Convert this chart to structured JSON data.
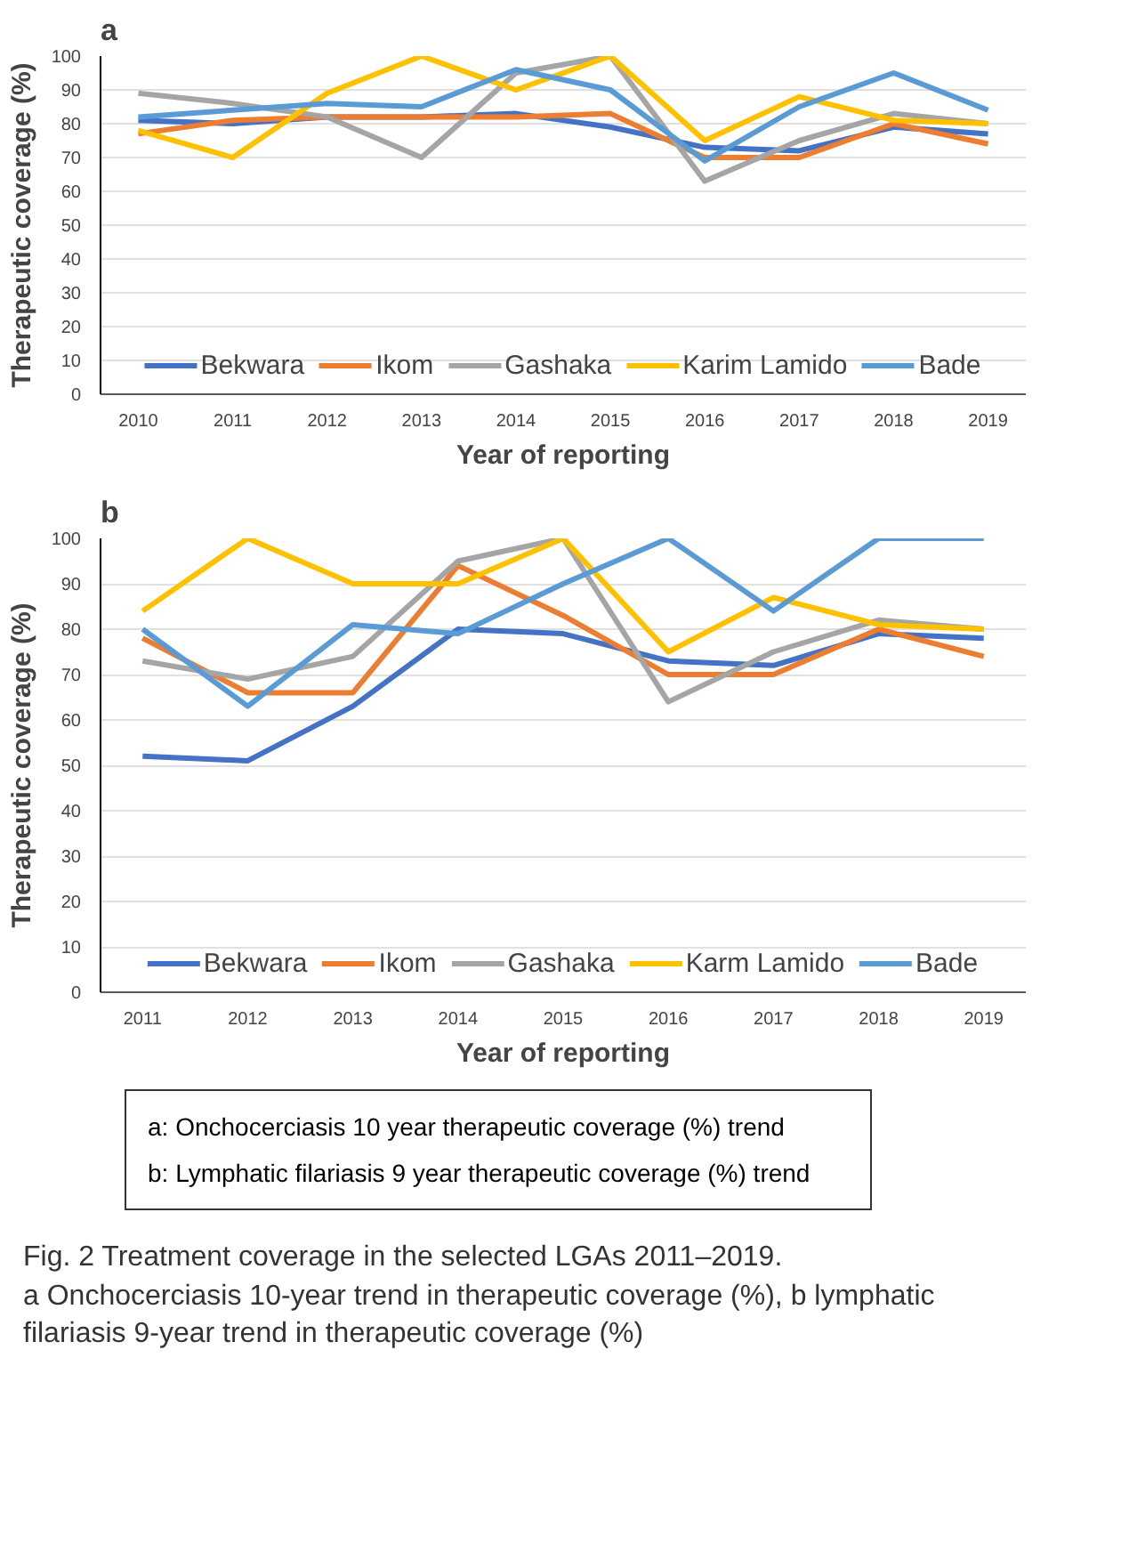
{
  "chart_data": [
    {
      "type": "line",
      "title": "a",
      "xlabel": "Year of reporting",
      "ylabel": "Therapeutic coverage (%)",
      "categories": [
        "2010",
        "2011",
        "2012",
        "2013",
        "2014",
        "2015",
        "2016",
        "2017",
        "2018",
        "2019"
      ],
      "series": [
        {
          "name": "Bekwara",
          "color": "#4472c4",
          "values": [
            81,
            80,
            82,
            82,
            83,
            79,
            73,
            72,
            79,
            77
          ]
        },
        {
          "name": "Ikom",
          "color": "#ed7d31",
          "values": [
            77,
            81,
            82,
            82,
            82,
            83,
            70,
            70,
            80,
            74
          ]
        },
        {
          "name": "Gashaka",
          "color": "#a5a5a5",
          "values": [
            89,
            86,
            82,
            70,
            95,
            100,
            63,
            75,
            83,
            80
          ]
        },
        {
          "name": "Karim Lamido",
          "color": "#ffc000",
          "values": [
            78,
            70,
            89,
            100,
            90,
            100,
            75,
            88,
            81,
            80
          ]
        },
        {
          "name": "Bade",
          "color": "#5b9bd5",
          "values": [
            82,
            84,
            86,
            85,
            96,
            90,
            69,
            85,
            95,
            84
          ]
        }
      ],
      "ylim": [
        0,
        100
      ],
      "yticks": [
        0,
        10,
        20,
        30,
        40,
        50,
        60,
        70,
        80,
        90,
        100
      ],
      "grid": "y",
      "legend": "bottom"
    },
    {
      "type": "line",
      "title": "b",
      "xlabel": "Year of reporting",
      "ylabel": "Therapeutic coverage (%)",
      "categories": [
        "2011",
        "2012",
        "2013",
        "2014",
        "2015",
        "2016",
        "2017",
        "2018",
        "2019"
      ],
      "series": [
        {
          "name": "Bekwara",
          "color": "#4472c4",
          "values": [
            52,
            51,
            63,
            80,
            79,
            73,
            72,
            79,
            78
          ]
        },
        {
          "name": "Ikom",
          "color": "#ed7d31",
          "values": [
            78,
            66,
            66,
            94,
            83,
            70,
            70,
            80,
            74
          ]
        },
        {
          "name": "Gashaka",
          "color": "#a5a5a5",
          "values": [
            73,
            69,
            74,
            95,
            100,
            64,
            75,
            82,
            80
          ]
        },
        {
          "name": "Karm Lamido",
          "color": "#ffc000",
          "values": [
            84,
            100,
            90,
            90,
            100,
            75,
            87,
            81,
            80
          ]
        },
        {
          "name": "Bade",
          "color": "#5b9bd5",
          "values": [
            80,
            63,
            81,
            79,
            90,
            100,
            84,
            100,
            100
          ]
        }
      ],
      "ylim": [
        0,
        100
      ],
      "yticks": [
        0,
        10,
        20,
        30,
        40,
        50,
        60,
        70,
        80,
        90,
        100
      ],
      "grid": "y",
      "legend": "bottom",
      "annotations": [
        "a: Onchocerciasis 10 year therapeutic coverage (%) trend",
        "b: Lymphatic filariasis 9 year therapeutic coverage (%) trend",
        "Fig. 2  Treatment coverage in the selected LGAs 2011–2019.",
        "a Onchocerciasis 10-year trend in therapeutic coverage (%), b lymphatic filariasis 9-year trend in therapeutic coverage (%)"
      ]
    }
  ]
}
